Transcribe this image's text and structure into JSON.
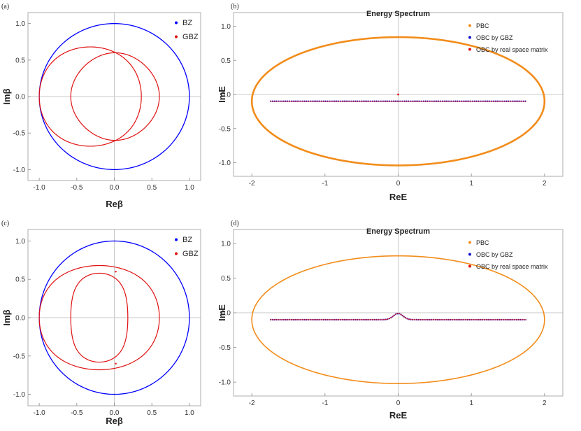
{
  "chart_data": [
    {
      "panel": "(a)",
      "type": "line",
      "title": "",
      "xlabel": "Reβ",
      "ylabel": "Imβ",
      "xlim": [
        -1.15,
        1.15
      ],
      "ylim": [
        -1.15,
        1.15
      ],
      "xticks": [
        "-1.0",
        "-0.5",
        "0.0",
        "0.5",
        "1.0"
      ],
      "yticks": [
        "1.0",
        "0.5",
        "0.0",
        "-0.5",
        "-1.0"
      ],
      "legend_position": "top-right",
      "series": [
        {
          "name": "BZ",
          "color": "#0000ff",
          "shape": "unit-circle",
          "center": [
            0,
            0
          ],
          "radius": 1.0
        },
        {
          "name": "GBZ",
          "color": "#e01010",
          "shape": "two-overlapping-loops",
          "loops": [
            {
              "center": [
                -0.32,
                0
              ],
              "radius": 0.68,
              "real_axis_crossings": [
                -1.0,
                0.36
              ]
            },
            {
              "center": [
                0.18,
                0
              ],
              "radius": 0.6,
              "real_axis_crossings": [
                -0.58,
                0.6
              ]
            }
          ],
          "intersections": [
            [
              -0.02,
              0.6
            ],
            [
              -0.02,
              -0.6
            ]
          ]
        }
      ]
    },
    {
      "panel": "(b)",
      "type": "scatter",
      "title": "Energy Spectrum",
      "xlabel": "ReE",
      "ylabel": "ImE",
      "xlim": [
        -2.25,
        2.25
      ],
      "ylim": [
        -1.2,
        1.2
      ],
      "xticks": [
        "-2",
        "-1",
        "0",
        "1",
        "2"
      ],
      "yticks": [
        "1.0",
        "0.5",
        "0.0",
        "-0.5",
        "-1.0"
      ],
      "legend_position": "top-right",
      "series": [
        {
          "name": "PBC",
          "color": "#f28c1a",
          "shape": "ellipse",
          "center": [
            0,
            -0.1
          ],
          "semi_axes": [
            2.0,
            0.94
          ]
        },
        {
          "name": "OBC by GBZ",
          "color": "#1010d0",
          "x_range": [
            -1.75,
            1.75
          ],
          "y": -0.1
        },
        {
          "name": "OBC by real space matrix",
          "color": "#e01010",
          "x_range": [
            -1.75,
            1.75
          ],
          "y": -0.1,
          "extra_point": [
            0,
            0
          ]
        }
      ]
    },
    {
      "panel": "(c)",
      "type": "line",
      "title": "",
      "xlabel": "Reβ",
      "ylabel": "Imβ",
      "xlim": [
        -1.15,
        1.15
      ],
      "ylim": [
        -1.15,
        1.15
      ],
      "xticks": [
        "-1.0",
        "-0.5",
        "0.0",
        "0.5",
        "1.0"
      ],
      "yticks": [
        "1.0",
        "0.5",
        "0.0",
        "-0.5",
        "-1.0"
      ],
      "legend_position": "top-right",
      "series": [
        {
          "name": "BZ",
          "color": "#0000ff",
          "shape": "unit-circle",
          "center": [
            0,
            0
          ],
          "radius": 1.0
        },
        {
          "name": "GBZ",
          "color": "#e01010",
          "shape": "two-nested-loops",
          "loops": [
            {
              "real_axis_crossings": [
                -1.0,
                0.6
              ],
              "top_y": 0.68,
              "bottom_y": -0.68
            },
            {
              "real_axis_crossings": [
                -0.58,
                0.18
              ],
              "top_y": 0.58,
              "bottom_y": -0.58
            }
          ],
          "touch_points": [
            [
              0.02,
              0.6
            ],
            [
              0.02,
              -0.6
            ]
          ]
        }
      ]
    },
    {
      "panel": "(d)",
      "type": "scatter",
      "title": "Energy Spectrum",
      "xlabel": "ReE",
      "ylabel": "ImE",
      "xlim": [
        -2.25,
        2.25
      ],
      "ylim": [
        -1.2,
        1.2
      ],
      "xticks": [
        "-2",
        "-1",
        "0",
        "1",
        "2"
      ],
      "yticks": [
        "1.0",
        "0.5",
        "0.0",
        "-0.5",
        "-1.0"
      ],
      "legend_position": "top-right",
      "series": [
        {
          "name": "PBC",
          "color": "#f28c1a",
          "shape": "ellipse",
          "center": [
            0,
            -0.1
          ],
          "semi_axes": [
            2.0,
            0.92
          ]
        },
        {
          "name": "OBC by GBZ",
          "color": "#1010d0",
          "x_range": [
            -1.75,
            1.75
          ],
          "baseline_y": -0.1,
          "peak": [
            0,
            -0.01
          ],
          "peak_width": 0.13
        },
        {
          "name": "OBC by real space matrix",
          "color": "#e01010",
          "x_range": [
            -1.75,
            1.75
          ],
          "baseline_y": -0.1,
          "peak": [
            0,
            -0.01
          ],
          "peak_width": 0.13
        }
      ]
    }
  ]
}
